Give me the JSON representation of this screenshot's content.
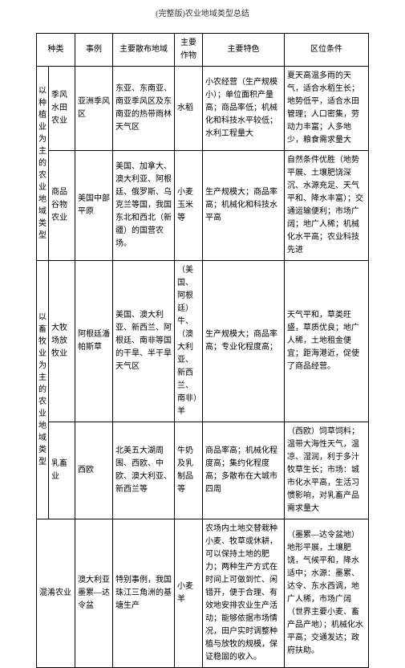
{
  "page_title": "(完整版)农业地域类型总结",
  "headers": {
    "kind": "种类",
    "example": "事例",
    "distribution": "主要散布地域",
    "crop": "主要作物",
    "feature": "主要特色",
    "location": "区位条件"
  },
  "group1_label": "以种植业为主的农业地域类型",
  "group2_label": "以畜牧业为主的农业地域类型",
  "rows": [
    {
      "kind": "季风水田农业",
      "example": "亚洲季风区",
      "dist": "东亚、东南亚、南亚季风区及东南亚的热带雨林天气区",
      "crop": "水稻",
      "feature": "小农经营（生产规模小）；单位面积产量高；商品率低；机械化和科技水平较低；水利工程量大",
      "loc": "夏天高温多雨的天气，适合水稻生长；地势低平，适合水田管理；人口密集，劳动力丰富；人多地少，粮食需求量大"
    },
    {
      "kind": "商品谷物农业",
      "example": "美国中部平原",
      "dist": "美国、加拿大、澳大利亚、阿根廷、俄罗斯、乌克兰等国，我国东北和西北（新疆）的国营农场。",
      "crop": "小麦玉米等",
      "feature": "生产规模大；商品率高；机械化和科技水平高",
      "loc": "自然条件优胜（地势平展、土壤肥饶深沉、水源充足、天气平和、降水丰富）；交通运输便利；市场广阔；地广人稀；机械化水平高；农业科技先进"
    },
    {
      "kind": "大牧场放牧业",
      "example": "阿根廷潘帕斯草",
      "dist": "美国、澳大利亚、新西兰、阿根廷、南非等国的干旱、半干旱天气区",
      "crop": "（美国、阿根廷）牛、（澳大利亚、新西兰、南非）羊",
      "feature": "生产规模大；商品率高；专业化程度高；",
      "loc": "天气平和，草类旺盛，草质优良；地广人稀，土地租金便宜；距海港近，促使了商品经营。"
    },
    {
      "kind": "乳畜业",
      "example": "西欧",
      "dist": "北美五大湖周围、西欧、中欧、澳大利亚、新西兰等",
      "crop": "牛奶及乳制品等",
      "feature": "商品率高；机械化程度高；集约化程度高；多散布在大城市四周",
      "loc": "（西欧）饲草饲料；温带大海性天气，温凉、湿润，利于多汁牧草生长；市场：城市化水平高，生活习惯影响，对乳畜产品需求量大"
    },
    {
      "kind_colspan": "混淆农业",
      "example": "澳大利亚墨累—达令盆",
      "dist": "特别事例，我国珠江三角洲的基塘生产",
      "crop": "小麦羊",
      "feature": "农场内土地交替栽种小麦、牧草或休耕，可以保持土地的肥力；两种生产方式在时间上可做到忙、闲错开，便于合理、有效地安排农业生产活动；能够依据市场情况，田户实时调整种植与放牧的规模，保证稳固的收入。",
      "loc": "（墨累—达令盆地）地形平展，土壤肥饶，气候平和，降水适中；水源：墨累、达令、东水西调，地广人稀，市场广阔（世界主要小麦、畜产品产地）；机械化水平高；交通发达；政府扶助。"
    }
  ]
}
